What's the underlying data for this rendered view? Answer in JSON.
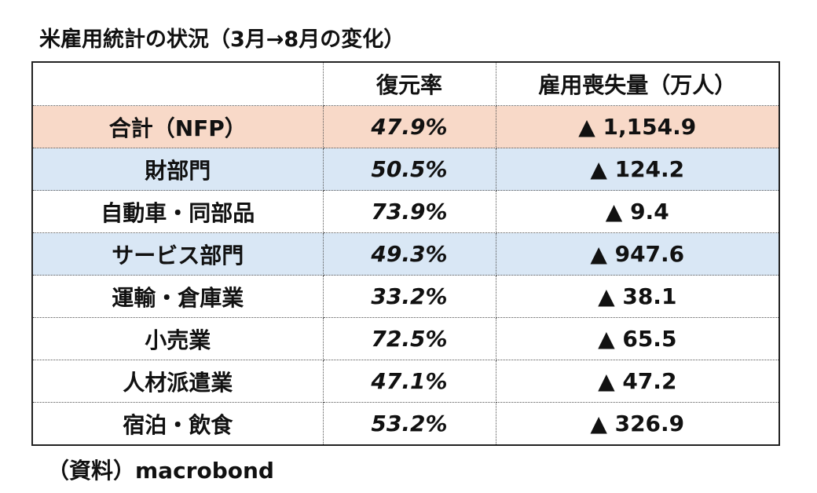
{
  "title": "米雇用統計の状況（3月→8月の変化）",
  "table": {
    "headers": [
      "",
      "復元率",
      "雇用喪失量（万人）"
    ],
    "rows": [
      {
        "label": "合計（NFP）",
        "rate": "47.9%",
        "loss": "▲ 1,154.9",
        "highlight": "#f8d9c8"
      },
      {
        "label": "財部門",
        "rate": "50.5%",
        "loss": "▲ 124.2",
        "highlight": "#d9e7f5"
      },
      {
        "label": "自動車・同部品",
        "rate": "73.9%",
        "loss": "▲ 9.4",
        "highlight": ""
      },
      {
        "label": "サービス部門",
        "rate": "49.3%",
        "loss": "▲ 947.6",
        "highlight": "#d9e7f5"
      },
      {
        "label": "運輸・倉庫業",
        "rate": "33.2%",
        "loss": "▲ 38.1",
        "highlight": ""
      },
      {
        "label": "小売業",
        "rate": "72.5%",
        "loss": "▲ 65.5",
        "highlight": ""
      },
      {
        "label": "人材派遣業",
        "rate": "47.1%",
        "loss": "▲ 47.2",
        "highlight": ""
      },
      {
        "label": "宿泊・飲食",
        "rate": "53.2%",
        "loss": "▲ 326.9",
        "highlight": ""
      }
    ]
  },
  "source": "（資料）macrobond"
}
